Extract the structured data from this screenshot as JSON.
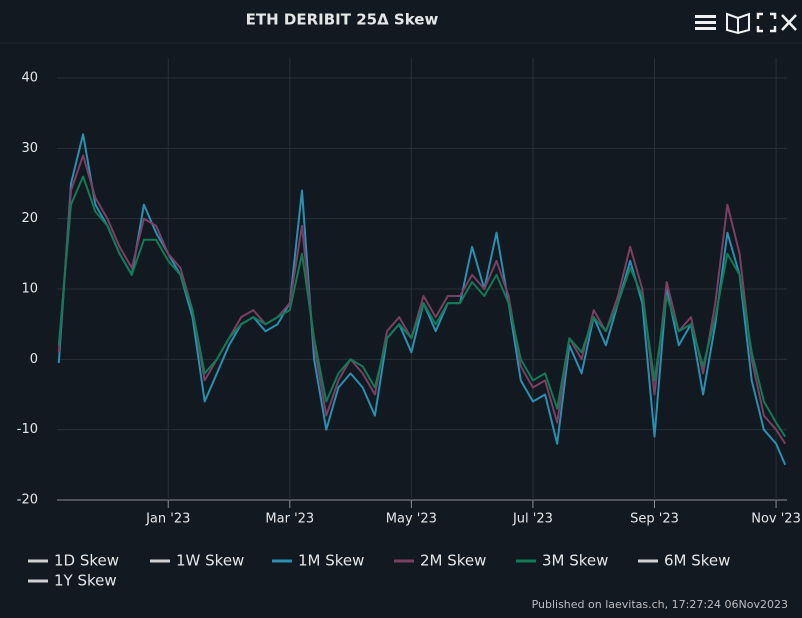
{
  "chart_data": {
    "type": "line",
    "title": "ETH DERIBIT 25Δ Skew",
    "footer": "Published on laevitas.ch, 17:27:24 06Nov2023",
    "x": [
      -1.8,
      -1.6,
      -1.4,
      -1.2,
      -1.0,
      -0.8,
      -0.6,
      -0.4,
      -0.2,
      0,
      0.2,
      0.4,
      0.6,
      0.8,
      1.0,
      1.2,
      1.4,
      1.6,
      1.8,
      2.0,
      2.2,
      2.4,
      2.6,
      2.8,
      3.0,
      3.2,
      3.4,
      3.6,
      3.8,
      4.0,
      4.2,
      4.4,
      4.6,
      4.8,
      5.0,
      5.2,
      5.4,
      5.6,
      5.8,
      6.0,
      6.2,
      6.4,
      6.6,
      6.8,
      7.0,
      7.2,
      7.4,
      7.6,
      7.8,
      8.0,
      8.2,
      8.4,
      8.6,
      8.8,
      9.0,
      9.2,
      9.4,
      9.6,
      9.8,
      10.0,
      10.15
    ],
    "xlim": [
      -1.83,
      10.18
    ],
    "xticks": [
      {
        "value": 0,
        "label": "Jan '23"
      },
      {
        "value": 2,
        "label": "Mar '23"
      },
      {
        "value": 4,
        "label": "May '23"
      },
      {
        "value": 6,
        "label": "Jul '23"
      },
      {
        "value": 8,
        "label": "Sep '23"
      },
      {
        "value": 10,
        "label": "Nov '23"
      }
    ],
    "ylim": [
      -20,
      40
    ],
    "yticks": [
      -20,
      -10,
      0,
      10,
      20,
      30,
      40
    ],
    "grid": true,
    "series": [
      {
        "name": "1D Skew",
        "color": "#d0d0d0",
        "hidden": true
      },
      {
        "name": "1W Skew",
        "color": "#d0d0d0",
        "hidden": true
      },
      {
        "name": "1M Skew",
        "color": "#2a8fb0",
        "values": [
          -0.5,
          25,
          32,
          22,
          19,
          15,
          12,
          22,
          18,
          15,
          12,
          6,
          -6,
          -2,
          2,
          5,
          6,
          4,
          5,
          8,
          24,
          0,
          -10,
          -4,
          -2,
          -4,
          -8,
          3,
          5,
          1,
          8,
          4,
          8,
          8,
          16,
          10,
          18,
          8,
          -3,
          -6,
          -5,
          -12,
          2,
          -2,
          6,
          2,
          8,
          14,
          8,
          -11,
          10,
          2,
          5,
          -5,
          5,
          18,
          12,
          -3,
          -10,
          -12,
          -15
        ]
      },
      {
        "name": "2M Skew",
        "color": "#7b3f63",
        "values": [
          1,
          24,
          29,
          23,
          20,
          16,
          13,
          20,
          19,
          15,
          13,
          7,
          -3,
          0,
          3,
          6,
          7,
          5,
          6,
          8,
          19,
          2,
          -8,
          -3,
          0,
          -2,
          -5,
          4,
          6,
          3,
          9,
          6,
          9,
          9,
          12,
          10,
          14,
          9,
          -1,
          -4,
          -3,
          -9,
          3,
          0,
          7,
          4,
          9,
          16,
          10,
          -5,
          11,
          4,
          6,
          -2,
          8,
          22,
          15,
          0,
          -8,
          -10,
          -12
        ]
      },
      {
        "name": "3M Skew",
        "color": "#127a55",
        "values": [
          2,
          22,
          26,
          21,
          19,
          15,
          12,
          17,
          17,
          14,
          12,
          7,
          -2,
          0,
          3,
          5,
          6,
          5,
          6,
          7,
          15,
          3,
          -6,
          -2,
          0,
          -1,
          -4,
          3,
          5,
          3,
          8,
          5,
          8,
          8,
          11,
          9,
          12,
          8,
          0,
          -3,
          -2,
          -7,
          3,
          1,
          6,
          4,
          8,
          13,
          9,
          -3,
          9,
          4,
          5,
          -1,
          6,
          15,
          12,
          1,
          -6,
          -9,
          -11
        ]
      },
      {
        "name": "6M Skew",
        "color": "#d0d0d0",
        "hidden": true
      },
      {
        "name": "1Y Skew",
        "color": "#d0d0d0",
        "hidden": true
      }
    ]
  }
}
